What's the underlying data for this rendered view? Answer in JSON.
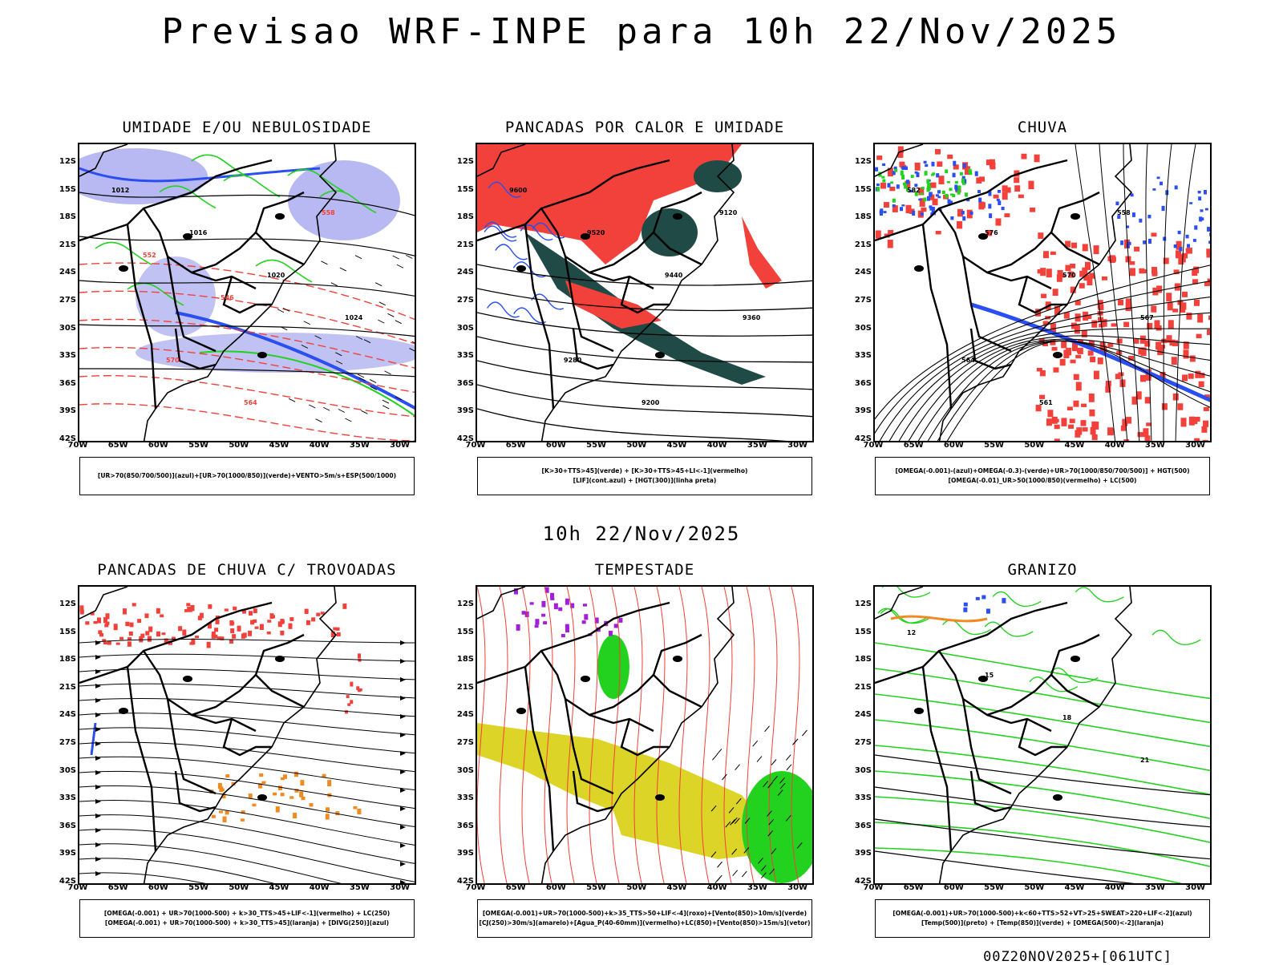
{
  "title": "Previsao WRF-INPE  para 10h 22/Nov/2025",
  "mid_title": "10h 22/Nov/2025",
  "footer": "00Z20NOV2025+[061UTC]",
  "lat_labels": [
    "12S",
    "15S",
    "18S",
    "21S",
    "24S",
    "27S",
    "30S",
    "33S",
    "36S",
    "39S",
    "42S"
  ],
  "lon_labels": [
    "70W",
    "65W",
    "60W",
    "55W",
    "50W",
    "45W",
    "40W",
    "35W",
    "30W"
  ],
  "panels": [
    {
      "title": "UMIDADE E/OU NEBULOSIDADE",
      "legend": [
        "[UR>70(850/700/500)](azul)+[UR>70(1000/850)](verde)+VENTO>5m/s+ESP(500/1000)"
      ],
      "contour_labels": [
        "1012",
        "1016",
        "1020",
        "1024",
        "570",
        "564",
        "558",
        "552",
        "546"
      ]
    },
    {
      "title": "PANCADAS POR CALOR E UMIDADE",
      "legend": [
        "[K>30+TTS>45](verde)  +  [K>30+TTS>45+LI<-1](vermelho)",
        "[LIF](cont.azul)  +  [HGT(300)](linha preta)"
      ],
      "contour_labels": [
        "9600",
        "9520",
        "9440",
        "9360",
        "9280",
        "9200",
        "9120"
      ]
    },
    {
      "title": "CHUVA",
      "legend": [
        "[OMEGA(-0.001)-(azul)+OMEGA(-0.3)-(verde)+UR>70(1000/850/700/500)]  +  HGT(500)",
        "[OMEGA(-0.01)_UR>50(1000/850)(vermelho)  +  LC(500)"
      ],
      "contour_labels": [
        "582",
        "576",
        "570",
        "567",
        "564",
        "561",
        "558"
      ]
    },
    {
      "title": "PANCADAS DE CHUVA C/ TROVOADAS",
      "legend": [
        "[OMEGA(-0.001)  +  UR>70(1000-500)  +  k>30_TTS>45+LIF<-1](vermelho)  +  LC(250)",
        "[OMEGA(-0.001)  +  UR>70(1000-500)  +  k>30_TTS>45](laranja)  +  [DIVG(250)](azul)"
      ],
      "contour_labels": []
    },
    {
      "title": "TEMPESTADE",
      "legend": [
        "[OMEGA(-0.001)+UR>70(1000-500)+k>35_TTS>50+LIF<-4](roxo)+[Vento(850)>10m/s](verde)",
        "[CJ(250)>30m/s](amarelo)+[Agua_P(40-60mm)](vermelho)+LC(850)+[Vento(850)>15m/s](vetor)"
      ],
      "contour_labels": []
    },
    {
      "title": "GRANIZO",
      "legend": [
        "[OMEGA(-0.001)+UR>70(1000-500)+k<60+TTS>52+VT>25+SWEAT>220+LIF<-2](azul)",
        "[Temp(500)](preto)  +  [Temp(850)](verde)  +  [OMEGA(500)<-2](laranja)"
      ],
      "contour_labels": [
        "12",
        "15",
        "18",
        "21"
      ]
    }
  ],
  "colors": {
    "red": "#f2403a",
    "green": "#22d21e",
    "blue": "#2a4ef0",
    "lightblue": "#a6a8f0",
    "darkteal": "#1f4a46",
    "yellow": "#dcd426",
    "orange": "#f08a22",
    "purple": "#a020d8"
  }
}
